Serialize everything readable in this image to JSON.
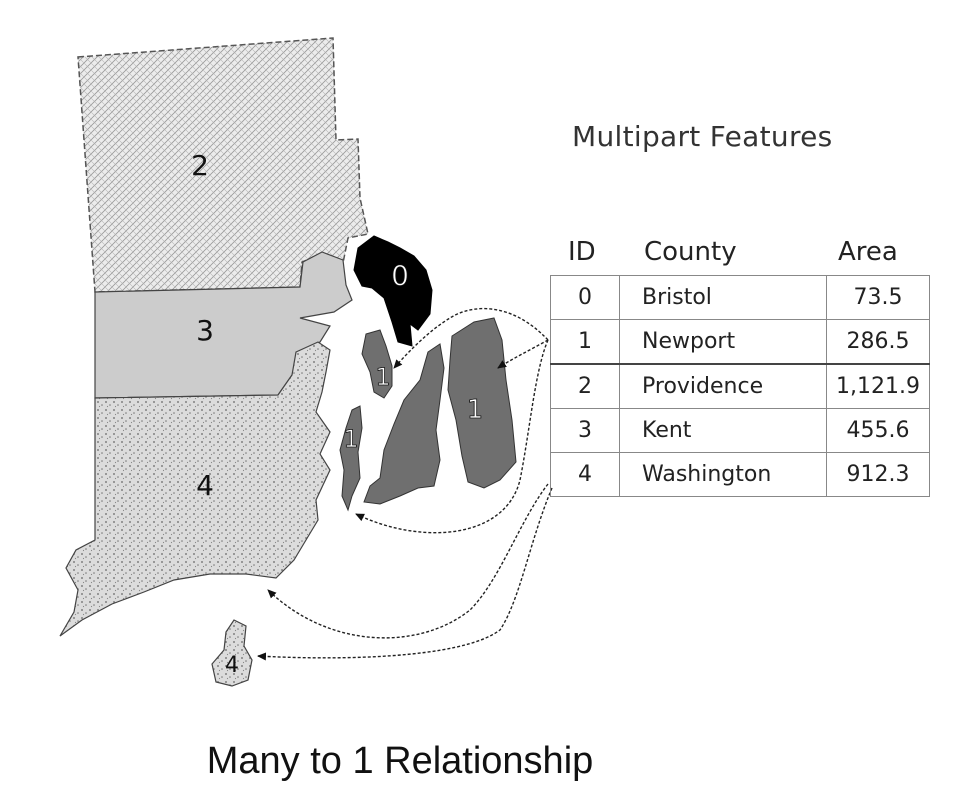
{
  "table": {
    "title": "Multipart Features",
    "headers": {
      "id": "ID",
      "county": "County",
      "area": "Area"
    },
    "rows": [
      {
        "id": "0",
        "county": "Bristol",
        "area": "73.5"
      },
      {
        "id": "1",
        "county": "Newport",
        "area": "286.5"
      },
      {
        "id": "2",
        "county": "Providence",
        "area": "1,121.9"
      },
      {
        "id": "3",
        "county": "Kent",
        "area": "455.6"
      },
      {
        "id": "4",
        "county": "Washington",
        "area": "912.3"
      }
    ]
  },
  "map": {
    "labels": {
      "providence": "2",
      "kent": "3",
      "washington_main": "4",
      "washington_block": "4",
      "bristol": "0",
      "newport_left": "1",
      "newport_mid": "1",
      "newport_right": "1"
    },
    "colors": {
      "providence_fill": "#e4e4e4",
      "kent_fill": "#cccccc",
      "washington_fill": "#d9d9d9",
      "bristol_fill": "#000000",
      "newport_fill": "#6f6f6f"
    }
  },
  "caption": "Many to 1 Relationship"
}
